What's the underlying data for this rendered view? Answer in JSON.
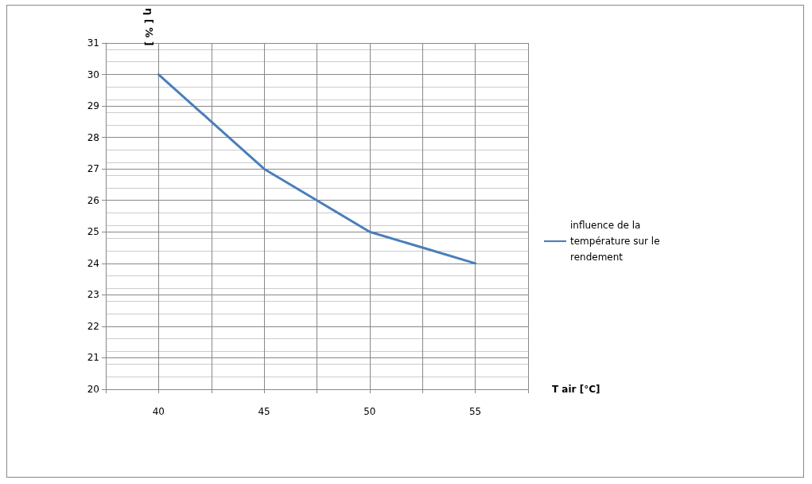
{
  "chart_data": {
    "type": "line",
    "xlabel": "T air [°C]",
    "ylabel": "η [ % ]",
    "x": [
      40,
      42.5,
      45,
      47.5,
      50,
      52.5,
      55
    ],
    "series": [
      {
        "name": "influence de la température sur le rendement",
        "color": "#4a7ebb",
        "values": [
          30,
          28.5,
          27,
          26,
          25,
          24.5,
          24
        ]
      }
    ],
    "xlim": [
      37.5,
      57.5
    ],
    "xticks": [
      {
        "value": 37.5,
        "label": null
      },
      40,
      {
        "value": 42.5,
        "label": null
      },
      45,
      {
        "value": 47.5,
        "label": null
      },
      50,
      {
        "value": 52.5,
        "label": null
      },
      55,
      {
        "value": 57.5,
        "label": null
      }
    ],
    "ylim": [
      20,
      31
    ],
    "yticks": [
      20,
      21,
      22,
      23,
      24,
      25,
      26,
      27,
      28,
      29,
      30,
      31
    ],
    "grid": true,
    "legend": "right",
    "marker": "none",
    "line_style": "solid"
  }
}
